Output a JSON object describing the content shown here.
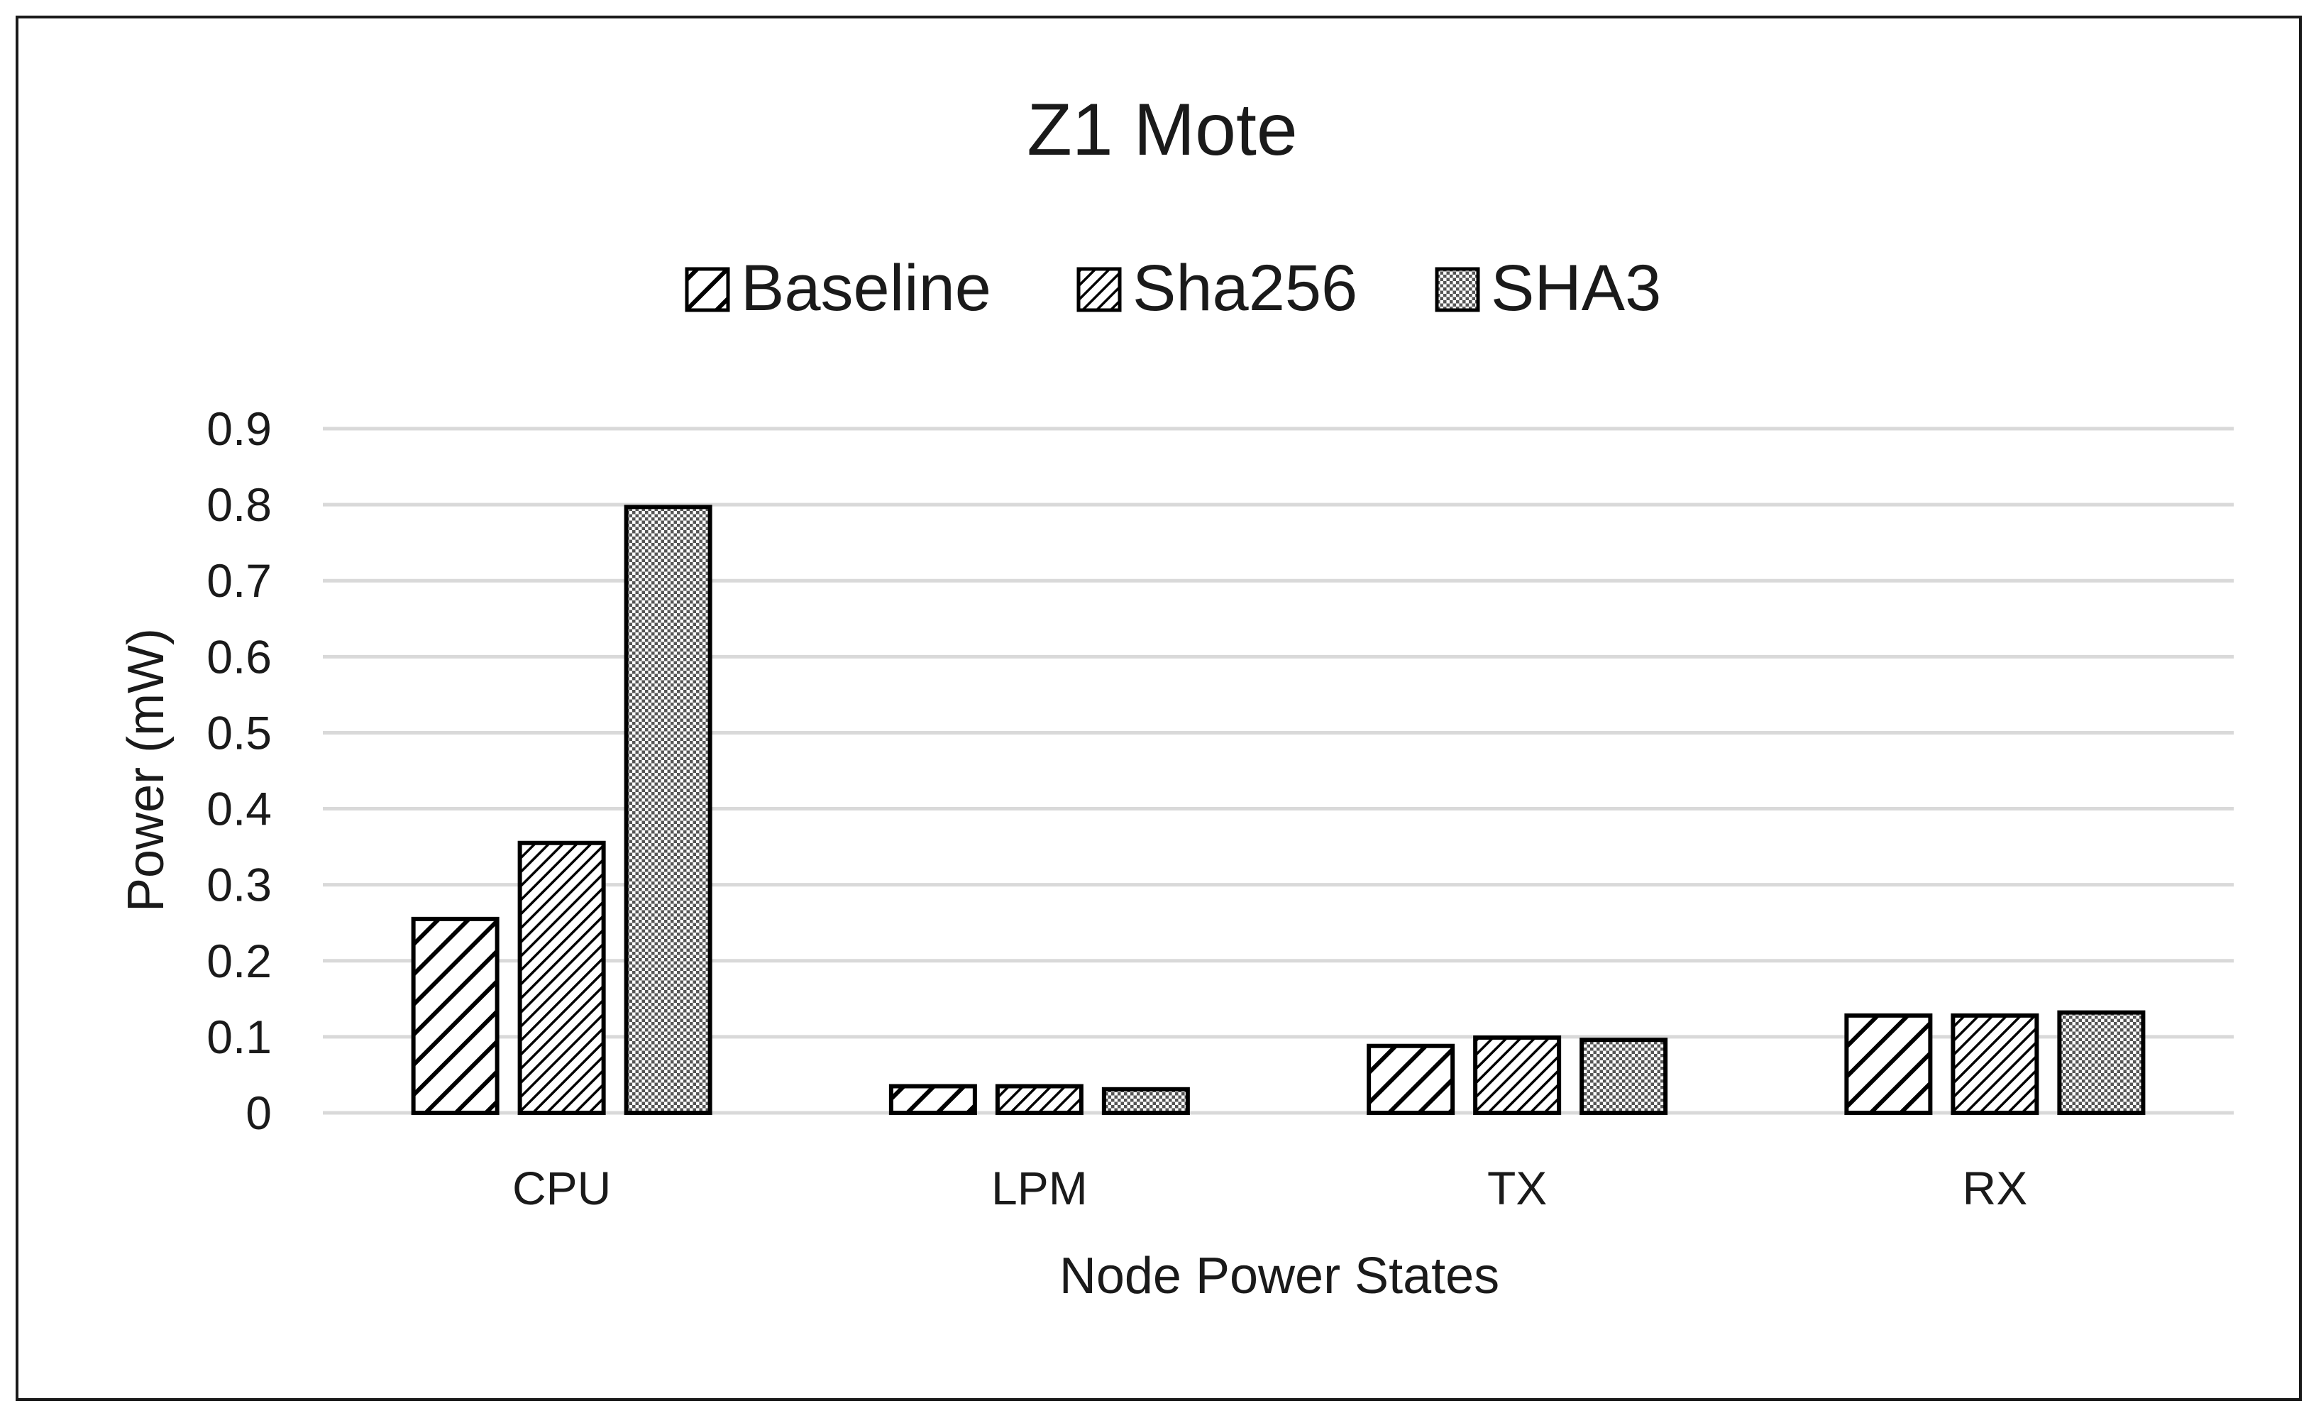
{
  "chart_data": {
    "type": "bar",
    "title": "Z1 Mote",
    "xlabel": "Node Power States",
    "ylabel": "Power (mW)",
    "categories": [
      "CPU",
      "LPM",
      "TX",
      "RX"
    ],
    "series": [
      {
        "name": "Baseline",
        "pattern": "diagonal-wide",
        "values": [
          0.255,
          0.035,
          0.088,
          0.128
        ]
      },
      {
        "name": "Sha256",
        "pattern": "diagonal-dense",
        "values": [
          0.355,
          0.035,
          0.099,
          0.128
        ]
      },
      {
        "name": "SHA3",
        "pattern": "dotted-grid",
        "values": [
          0.797,
          0.031,
          0.096,
          0.132
        ]
      }
    ],
    "ylim": [
      0,
      0.9
    ],
    "yticks": [
      "0",
      "0.1",
      "0.2",
      "0.3",
      "0.4",
      "0.5",
      "0.6",
      "0.7",
      "0.8",
      "0.9"
    ],
    "grid": true,
    "legend_position": "top-center",
    "colors": {
      "bar_fill": "#ffffff",
      "bar_stroke": "#000000",
      "grid": "#d9d9d9",
      "text": "#1a1a1a"
    }
  }
}
